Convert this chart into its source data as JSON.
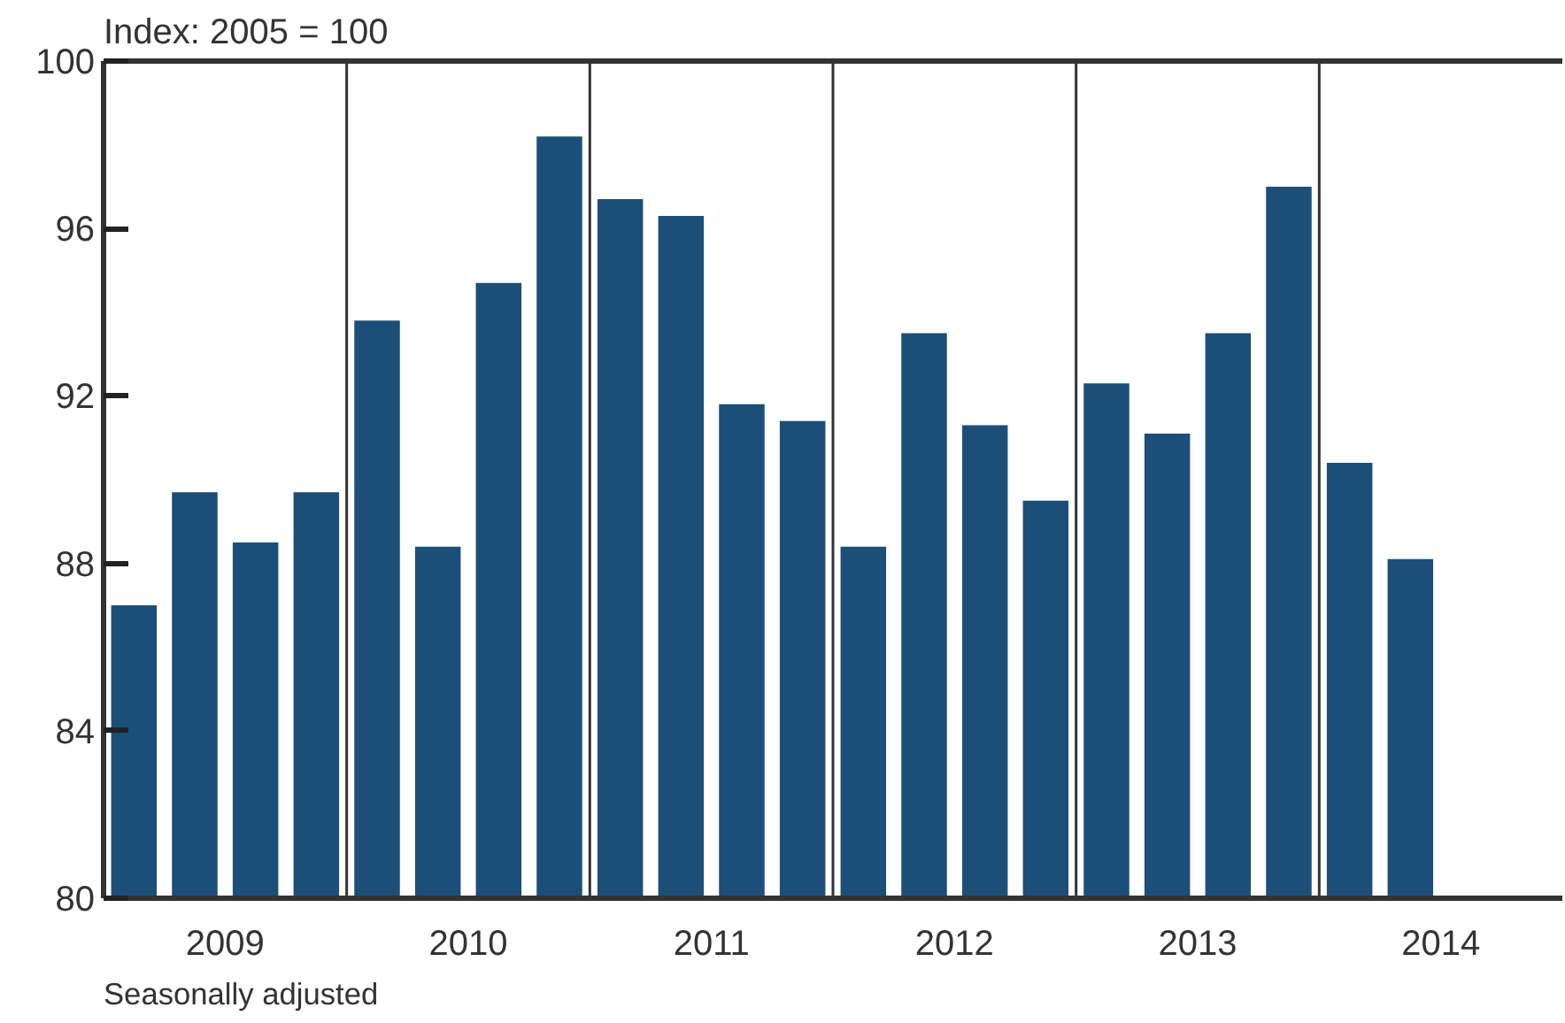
{
  "chart_data": {
    "type": "bar",
    "ylabel": "Index: 2005 = 100",
    "x": [
      2009.125,
      2009.375,
      2009.625,
      2009.875,
      2010.125,
      2010.375,
      2010.625,
      2010.875,
      2011.125,
      2011.375,
      2011.625,
      2011.875,
      2012.125,
      2012.375,
      2012.625,
      2012.875,
      2013.125,
      2013.375,
      2013.625,
      2013.875,
      2014.125,
      2014.375
    ],
    "values": [
      87.0,
      89.7,
      88.5,
      89.7,
      93.8,
      88.4,
      94.7,
      98.2,
      96.7,
      96.3,
      91.8,
      91.4,
      88.4,
      93.5,
      91.3,
      89.5,
      92.3,
      91.1,
      93.5,
      97.0,
      90.4,
      88.1
    ],
    "color": "#1b4f79",
    "xlim": [
      2009,
      2015
    ],
    "xticks": [
      {
        "value": 2009.5,
        "label": "2009"
      },
      {
        "value": 2010.5,
        "label": "2010"
      },
      {
        "value": 2011.5,
        "label": "2011"
      },
      {
        "value": 2012.5,
        "label": "2012"
      },
      {
        "value": 2013.5,
        "label": "2013"
      },
      {
        "value": 2014.5,
        "label": "2014"
      }
    ],
    "ylim": [
      80,
      100
    ],
    "yticks": [
      80,
      84,
      88,
      92,
      96,
      100
    ],
    "ref_lines": [
      {
        "axis": "x",
        "value": 2010,
        "color": "#333333"
      },
      {
        "axis": "x",
        "value": 2011,
        "color": "#333333"
      },
      {
        "axis": "x",
        "value": 2012,
        "color": "#333333"
      },
      {
        "axis": "x",
        "value": 2013,
        "color": "#333333"
      },
      {
        "axis": "x",
        "value": 2014,
        "color": "#333333"
      }
    ],
    "annotations": [
      "Seasonally adjusted"
    ],
    "grid": false
  }
}
